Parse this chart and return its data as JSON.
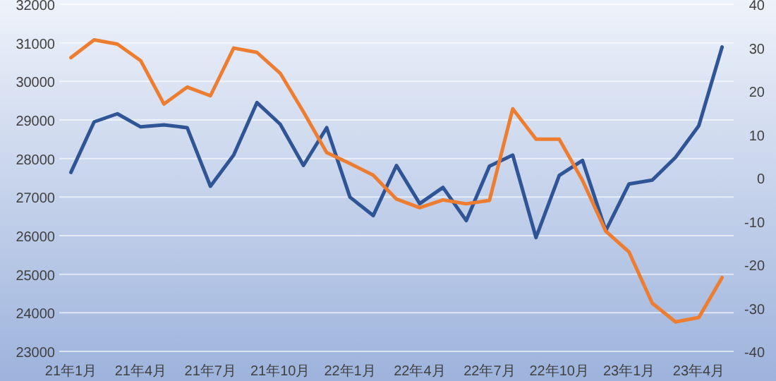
{
  "chart_data": {
    "type": "line",
    "categories": [
      "21年1月",
      null,
      null,
      "21年4月",
      null,
      null,
      "21年7月",
      null,
      null,
      "21年10月",
      null,
      null,
      "22年1月",
      null,
      null,
      "22年4月",
      null,
      null,
      "22年7月",
      null,
      null,
      "22年10月",
      null,
      null,
      "23年1月",
      null,
      null,
      "23年4月",
      null
    ],
    "series": [
      {
        "color": "#2f5597",
        "axis": "y",
        "values": [
          27640,
          28950,
          29160,
          28820,
          28870,
          28800,
          27280,
          28090,
          29450,
          28890,
          27820,
          28800,
          27000,
          26520,
          27820,
          26830,
          27250,
          26390,
          27800,
          28090,
          25950,
          27560,
          27950,
          26130,
          27340,
          27440,
          28030,
          28850,
          30890
        ]
      },
      {
        "color": "#ed7d31",
        "axis": "y2",
        "values": [
          27.7,
          31.8,
          30.8,
          27.0,
          17.0,
          20.9,
          18.9,
          29.9,
          28.9,
          24.1,
          15.2,
          5.8,
          3.3,
          0.6,
          -4.9,
          -6.9,
          -5.1,
          -6.0,
          -5.2,
          15.9,
          8.9,
          8.9,
          -0.6,
          -12.3,
          -17.1,
          -28.9,
          -33.2,
          -32.2,
          -23.0
        ]
      }
    ],
    "ylim": [
      23000,
      32000
    ],
    "yticks": [
      23000,
      24000,
      25000,
      26000,
      27000,
      28000,
      29000,
      30000,
      31000,
      32000
    ],
    "y2lim": [
      -40,
      40
    ],
    "y2ticks": [
      -40,
      -30,
      -20,
      -10,
      0,
      10,
      20,
      30,
      40
    ],
    "grid": "y",
    "line_style": "solid",
    "marker": "none"
  }
}
